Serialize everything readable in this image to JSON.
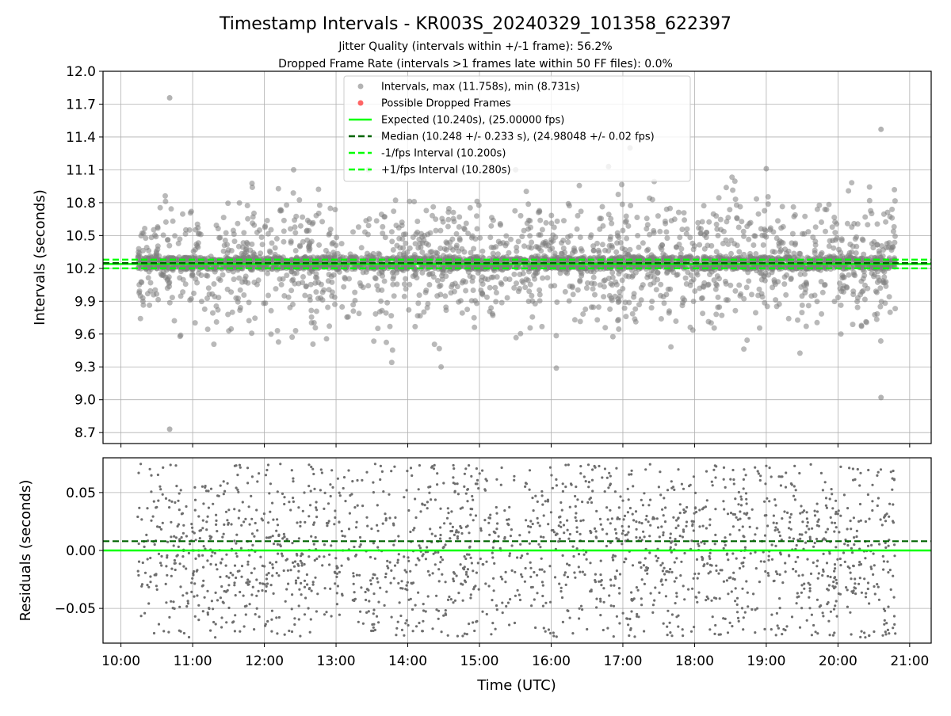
{
  "chart_data": {
    "title": "Timestamp Intervals - KR003S_20240329_101358_622397",
    "subtitle_lines": [
      "Jitter Quality (intervals within +/-1 frame): 56.2%",
      "Dropped Frame Rate (intervals >1 frames late within 50 FF files): 0.0%"
    ],
    "colors": {
      "points": "#808080",
      "dropped": "#ff0000",
      "expected": "#00ff00",
      "median": "#006400",
      "bound": "#00ff00",
      "grid": "#b0b0b0"
    },
    "x_axis": {
      "label": "Time (UTC)",
      "range_hours": [
        9.75,
        21.3
      ],
      "ticks": [
        "10:00",
        "11:00",
        "12:00",
        "13:00",
        "14:00",
        "15:00",
        "16:00",
        "17:00",
        "18:00",
        "19:00",
        "20:00",
        "21:00"
      ],
      "data_start_hours": 10.233,
      "data_end_hours": 20.8
    },
    "top_panel": {
      "type": "scatter",
      "ylabel": "Intervals (seconds)",
      "ylim": [
        8.6,
        12.0
      ],
      "yticks": [
        "8.7",
        "9.0",
        "9.3",
        "9.6",
        "9.9",
        "10.2",
        "10.5",
        "10.8",
        "11.1",
        "11.4",
        "11.7",
        "12.0"
      ],
      "grid": true,
      "legend_position": "upper center",
      "legend": [
        "Intervals, max (11.758s), min (8.731s)",
        "Possible Dropped Frames",
        "Expected (10.240s), (25.00000 fps)",
        "Median (10.248 +/- 0.233 s), (24.98048 +/- 0.02 fps)",
        "-1/fps Interval (10.200s)",
        "+1/fps Interval (10.280s)"
      ],
      "expected": 10.24,
      "median": 10.248,
      "lower_bound": 10.2,
      "upper_bound": 10.28,
      "max_interval": 11.758,
      "min_interval": 8.731,
      "max_interval_time_hours": 10.68,
      "min_interval_time_hours": 10.68,
      "dropped_frames_count": 0,
      "approx_point_count": 3700,
      "band_fraction_within_frame": 0.562,
      "scatter_sigma": 0.233
    },
    "bottom_panel": {
      "type": "scatter",
      "ylabel": "Residuals (seconds)",
      "ylim": [
        -0.08,
        0.08
      ],
      "yticks": [
        "−0.05",
        "0.00",
        "0.05"
      ],
      "yticks_values": [
        -0.05,
        0.0,
        0.05
      ],
      "grid": true,
      "expected_residual": 0.0,
      "median_residual": 0.008,
      "approx_point_count": 2000
    }
  }
}
